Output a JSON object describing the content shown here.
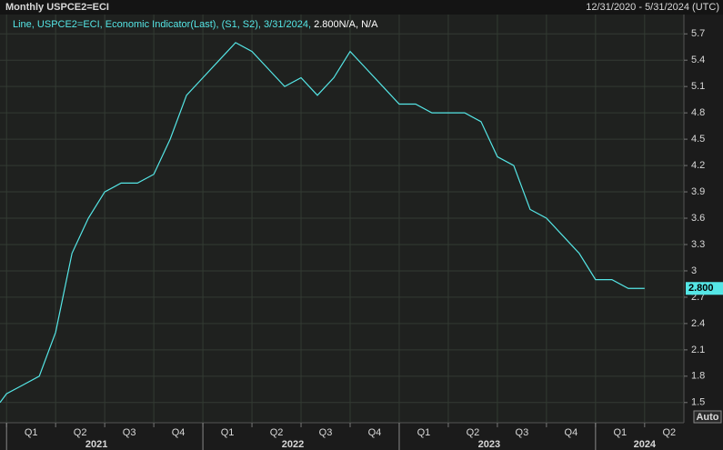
{
  "chart_data": {
    "type": "line",
    "title": "Monthly USPCE2=ECI",
    "date_range": "12/31/2020 - 5/31/2024 (UTC)",
    "legend_text": "Line, USPCE2=ECI, Economic Indicator(Last), (S1, S2), 3/31/2024, ",
    "legend_value": "2.800",
    "legend_suffix": "N/A, N/A",
    "auto_button": "Auto",
    "x": [
      -0.4,
      0,
      1,
      2,
      3,
      4,
      5,
      6,
      7,
      8,
      9,
      10,
      11,
      12,
      13,
      14,
      15,
      16,
      17,
      18,
      19,
      20,
      21,
      22,
      23,
      24,
      25,
      26,
      27,
      28,
      29,
      30,
      31,
      32,
      33,
      34,
      35,
      36,
      37,
      38,
      39
    ],
    "series": [
      {
        "name": "USPCE2=ECI",
        "color": "#55e6e6",
        "values": [
          1.5,
          1.6,
          1.7,
          1.8,
          2.3,
          3.2,
          3.6,
          3.9,
          4.0,
          4.0,
          4.1,
          4.5,
          5.0,
          5.2,
          5.4,
          5.6,
          5.5,
          5.3,
          5.1,
          5.2,
          5.0,
          5.2,
          5.5,
          5.3,
          5.1,
          4.9,
          4.9,
          4.8,
          4.8,
          4.8,
          4.7,
          4.3,
          4.2,
          3.7,
          3.6,
          3.4,
          3.2,
          2.9,
          2.9,
          2.8,
          2.8
        ]
      }
    ],
    "last_label": {
      "value": 2.8,
      "label": "2.800"
    },
    "xlim": [
      -0.4,
      41.4
    ],
    "ylim": [
      1.27,
      5.92
    ],
    "yticks": [
      1.5,
      1.8,
      2.1,
      2.4,
      2.7,
      3,
      3.3,
      3.6,
      3.9,
      4.2,
      4.5,
      4.8,
      5.1,
      5.4,
      5.7
    ],
    "xticks": [
      {
        "value": 1.5,
        "label": "Q1"
      },
      {
        "value": 4.5,
        "label": "Q2"
      },
      {
        "value": 7.5,
        "label": "Q3"
      },
      {
        "value": 10.5,
        "label": "Q4"
      },
      {
        "value": 13.5,
        "label": "Q1"
      },
      {
        "value": 16.5,
        "label": "Q2"
      },
      {
        "value": 19.5,
        "label": "Q3"
      },
      {
        "value": 22.5,
        "label": "Q4"
      },
      {
        "value": 25.5,
        "label": "Q1"
      },
      {
        "value": 28.5,
        "label": "Q2"
      },
      {
        "value": 31.5,
        "label": "Q3"
      },
      {
        "value": 34.5,
        "label": "Q4"
      },
      {
        "value": 37.5,
        "label": "Q1"
      },
      {
        "value": 40.5,
        "label": "Q2"
      }
    ],
    "xgrid": [
      0,
      3,
      6,
      9,
      12,
      15,
      18,
      21,
      24,
      27,
      30,
      33,
      36,
      39
    ],
    "year_ticks": [
      {
        "value": 5.5,
        "label": "2021"
      },
      {
        "value": 17.5,
        "label": "2022"
      },
      {
        "value": 29.5,
        "label": "2023"
      },
      {
        "value": 39,
        "label": "2024"
      }
    ],
    "year_bounds": [
      0,
      12,
      24,
      36
    ],
    "grid": true
  }
}
